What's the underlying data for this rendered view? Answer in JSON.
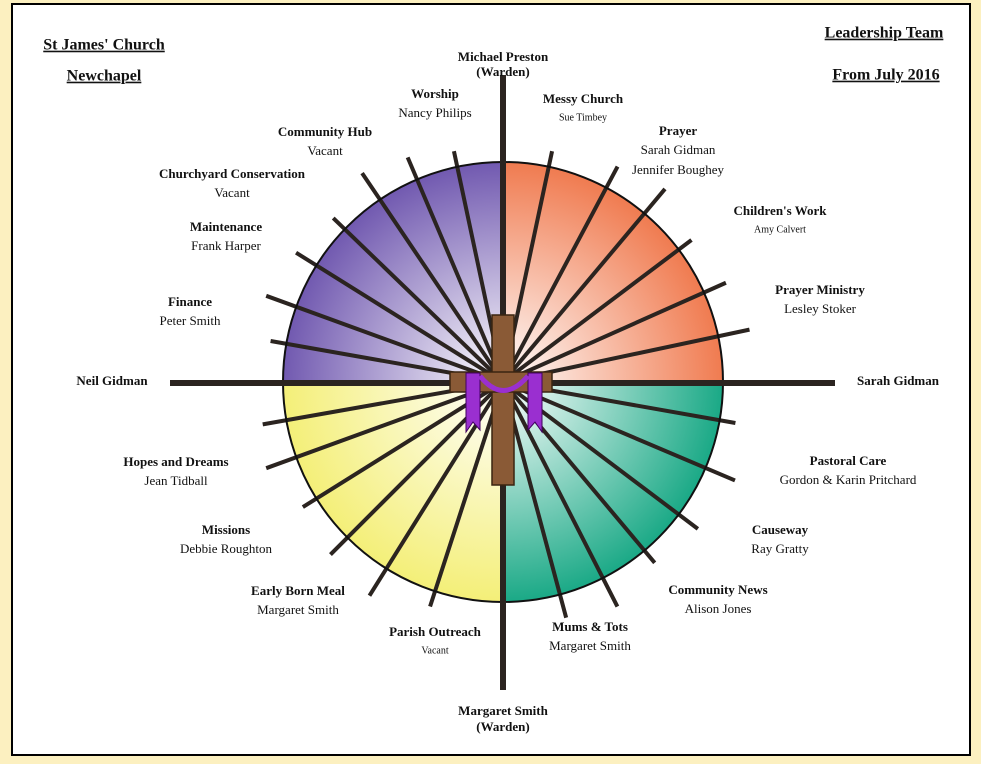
{
  "header": {
    "left": [
      "St James' Church",
      "Newchapel"
    ],
    "right": [
      "Leadership Team",
      "From July 2016"
    ]
  },
  "axes": {
    "top": [
      "Michael Preston",
      "(Warden)"
    ],
    "bottom": [
      "Margaret Smith",
      "(Warden)"
    ],
    "left": "Neil Gidman",
    "right": "Sarah Gidman"
  },
  "nodes": [
    {
      "title": "Worship",
      "names": [
        "Nancy Philips"
      ]
    },
    {
      "title": "Messy Church",
      "names": [
        "Sue Timbey"
      ]
    },
    {
      "title": "Prayer",
      "names": [
        "Sarah Gidman",
        "Jennifer Boughey"
      ]
    },
    {
      "title": "Children's Work",
      "names": [
        "Amy Calvert"
      ]
    },
    {
      "title": "Prayer Ministry",
      "names": [
        "Lesley Stoker"
      ]
    },
    {
      "title": "Community Hub",
      "names": [
        "Vacant"
      ]
    },
    {
      "title": "Churchyard Conservation",
      "names": [
        "Vacant"
      ]
    },
    {
      "title": "Maintenance",
      "names": [
        "Frank Harper"
      ]
    },
    {
      "title": "Finance",
      "names": [
        "Peter Smith"
      ]
    },
    {
      "title": "Hopes and Dreams",
      "names": [
        "Jean Tidball"
      ]
    },
    {
      "title": "Missions",
      "names": [
        "Debbie Roughton"
      ]
    },
    {
      "title": "Early Born Meal",
      "names": [
        "Margaret Smith"
      ]
    },
    {
      "title": "Parish Outreach",
      "names": [
        "Vacant"
      ]
    },
    {
      "title": "Mums & Tots",
      "names": [
        "Margaret Smith"
      ]
    },
    {
      "title": "Community News",
      "names": [
        "Alison Jones"
      ]
    },
    {
      "title": "Causeway",
      "names": [
        "Ray Gratty"
      ]
    },
    {
      "title": "Pastoral Care",
      "names": [
        "Gordon & Karin Pritchard"
      ]
    }
  ]
}
